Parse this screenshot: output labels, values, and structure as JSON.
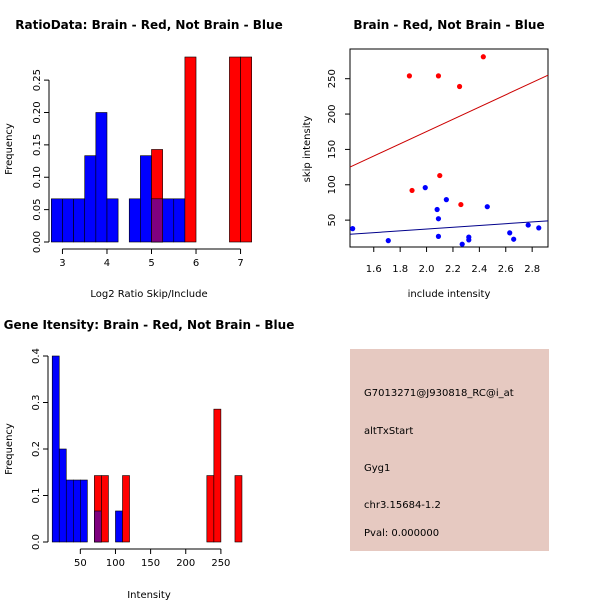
{
  "colors": {
    "red": "#ff0000",
    "blue": "#0000ff",
    "overlap": "#7f007f",
    "panel": "#e6c9c1",
    "pval": "#b00000",
    "red_line": "#cc0000",
    "blue_line": "#00008b"
  },
  "chart_data": [
    {
      "type": "bar",
      "title": "RatioData: Brain - Red, Not Brain - Blue",
      "xlabel": "Log2 Ratio Skip/Include",
      "ylabel": "Frequency",
      "xlim": [
        2.9,
        7.1
      ],
      "ylim": [
        0,
        0.2857
      ],
      "xticks": [
        3,
        4,
        5,
        6,
        7
      ],
      "yticks": [
        0.0,
        0.05,
        0.1,
        0.15,
        0.2,
        0.25
      ],
      "ytick_labels": [
        "0.00",
        "0.05",
        "0.10",
        "0.15",
        "0.20",
        "0.25"
      ],
      "series": [
        {
          "name": "Not Brain",
          "color": "blue",
          "bins": [
            [
              2.75,
              3.0,
              0.0667
            ],
            [
              3.0,
              3.25,
              0.0667
            ],
            [
              3.25,
              3.5,
              0.0667
            ],
            [
              3.5,
              3.75,
              0.1333
            ],
            [
              3.75,
              4.0,
              0.2
            ],
            [
              4.0,
              4.25,
              0.0667
            ],
            [
              4.5,
              4.75,
              0.0667
            ],
            [
              4.75,
              5.0,
              0.1333
            ],
            [
              5.0,
              5.25,
              0.0667
            ],
            [
              5.25,
              5.5,
              0.0667
            ],
            [
              5.5,
              5.75,
              0.0667
            ]
          ]
        },
        {
          "name": "Brain",
          "color": "red",
          "bins": [
            [
              5.0,
              5.25,
              0.1429
            ],
            [
              5.75,
              6.0,
              0.2857
            ],
            [
              6.75,
              7.0,
              0.2857
            ],
            [
              7.0,
              7.25,
              0.2857
            ]
          ]
        }
      ]
    },
    {
      "type": "scatter",
      "title": "Brain - Red, Not Brain - Blue",
      "xlabel": "include intensity",
      "ylabel": "skip intensity",
      "xlim": [
        1.42,
        2.92
      ],
      "ylim": [
        12,
        292
      ],
      "xticks": [
        1.6,
        1.8,
        2.0,
        2.2,
        2.4,
        2.6,
        2.8
      ],
      "xtick_labels": [
        "1.6",
        "1.8",
        "2.0",
        "2.2",
        "2.4",
        "2.6",
        "2.8"
      ],
      "yticks": [
        50,
        100,
        150,
        200,
        250
      ],
      "series": [
        {
          "name": "Brain",
          "color": "red",
          "x": [
            1.87,
            2.09,
            2.43,
            2.25,
            2.1,
            1.89,
            2.26
          ],
          "y": [
            254,
            254,
            281,
            239,
            113,
            92,
            72
          ],
          "fit": [
            [
              1.42,
              125
            ],
            [
              2.92,
              255
            ]
          ]
        },
        {
          "name": "Not Brain",
          "color": "blue",
          "x": [
            1.44,
            1.71,
            1.99,
            2.08,
            2.09,
            2.15,
            2.09,
            2.32,
            2.32,
            2.46,
            2.27,
            2.63,
            2.66,
            2.77,
            2.85
          ],
          "y": [
            38,
            21,
            96,
            65,
            52,
            79,
            27,
            26,
            22,
            69,
            16,
            32,
            23,
            43,
            39
          ],
          "fit": [
            [
              1.42,
              30
            ],
            [
              2.92,
              49
            ]
          ]
        }
      ]
    },
    {
      "type": "bar",
      "title": "Gene Itensity: Brain - Red, Not Brain - Blue",
      "xlabel": "Intensity",
      "ylabel": "Frequency",
      "xlim": [
        4,
        290
      ],
      "ylim": [
        0,
        0.4
      ],
      "xticks": [
        50,
        100,
        150,
        200,
        250
      ],
      "yticks": [
        0.0,
        0.1,
        0.2,
        0.3,
        0.4
      ],
      "ytick_labels": [
        "0.0",
        "0.1",
        "0.2",
        "0.3",
        "0.4"
      ],
      "series": [
        {
          "name": "Not Brain",
          "color": "blue",
          "bins": [
            [
              10,
              20,
              0.4
            ],
            [
              20,
              30,
              0.2
            ],
            [
              30,
              40,
              0.1333
            ],
            [
              40,
              50,
              0.1333
            ],
            [
              50,
              60,
              0.1333
            ],
            [
              70,
              80,
              0.0667
            ],
            [
              100,
              110,
              0.0667
            ]
          ]
        },
        {
          "name": "Brain",
          "color": "red",
          "bins": [
            [
              70,
              80,
              0.1429
            ],
            [
              80,
              90,
              0.1429
            ],
            [
              110,
              120,
              0.1429
            ],
            [
              230,
              240,
              0.1429
            ],
            [
              240,
              250,
              0.2857
            ],
            [
              270,
              280,
              0.1429
            ]
          ]
        }
      ]
    }
  ],
  "info_panel": {
    "probe_id": "G7013271@J930818_RC@i_at",
    "event_type": "altTxStart",
    "gene": "Gyg1",
    "location": "chr3.15684-1.2",
    "pval": "Pval: 0.000000"
  }
}
